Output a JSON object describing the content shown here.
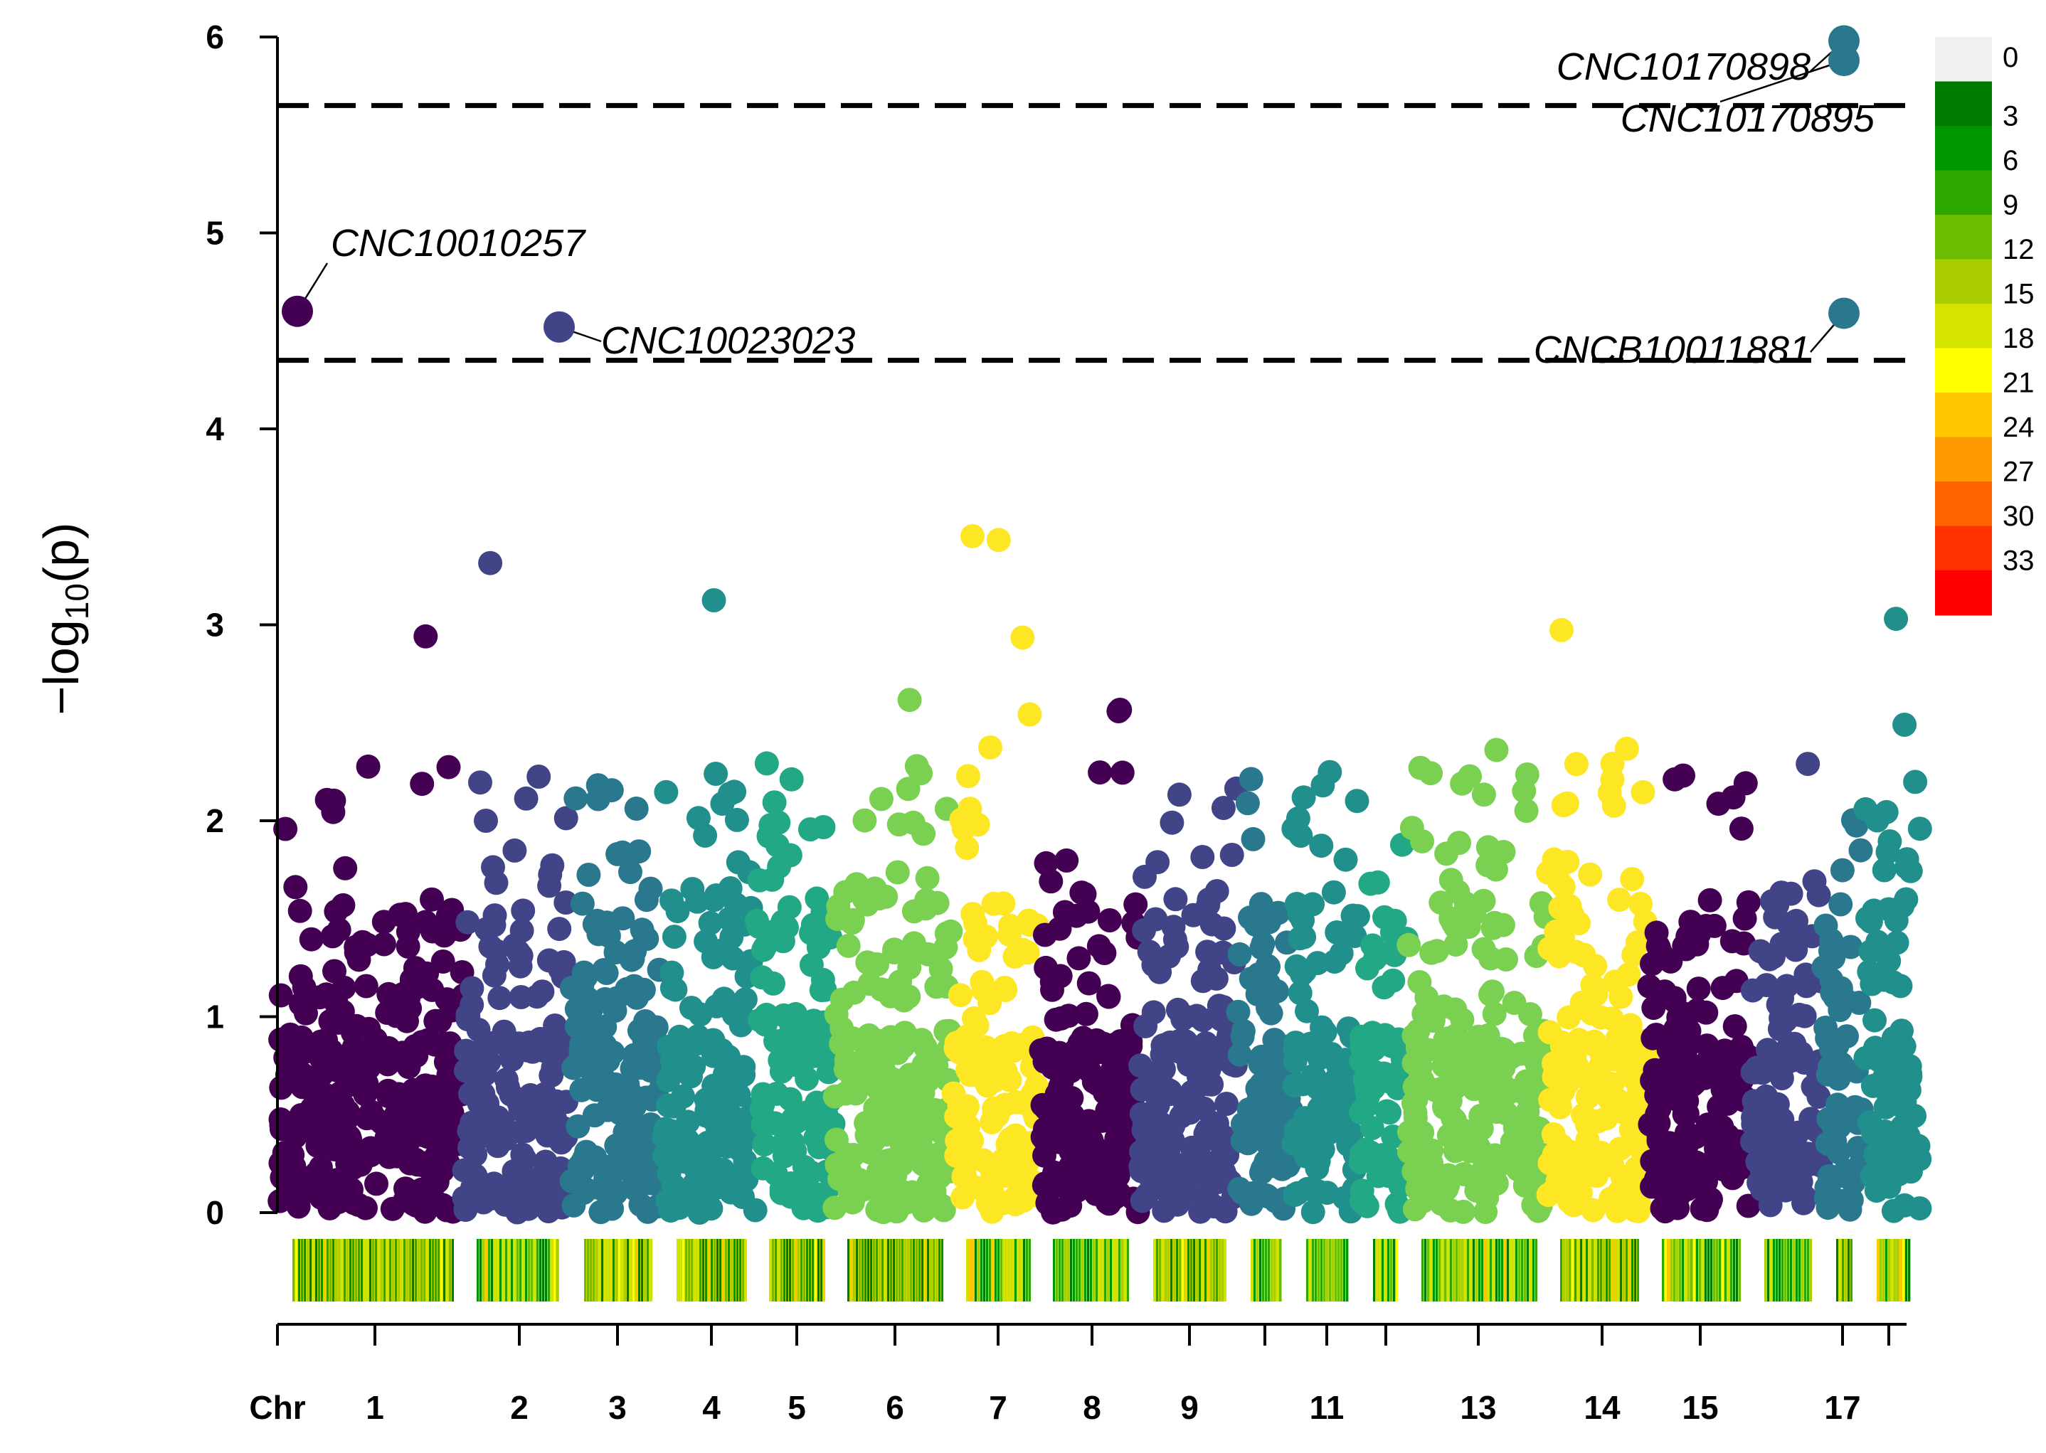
{
  "chart_data": {
    "type": "scatter",
    "subtype": "manhattan",
    "title": "",
    "xlabel": "Chr",
    "ylabel_main": "−log",
    "ylabel_sub": "10",
    "ylabel_arg": "(p)",
    "ylim": [
      0,
      6
    ],
    "yticks": [
      0,
      1,
      2,
      3,
      4,
      5,
      6
    ],
    "thresholds": [
      4.35,
      5.65
    ],
    "chromosomes": [
      "1",
      "2",
      "3",
      "4",
      "5",
      "6",
      "7",
      "8",
      "9",
      "10",
      "11",
      "12",
      "13",
      "14",
      "15",
      "16",
      "17",
      "18"
    ],
    "chr_tick_labels": [
      "Chr",
      "1",
      "2",
      "3",
      "4",
      "5",
      "6",
      "7",
      "8",
      "9",
      "11",
      "13",
      "14",
      "15",
      "17"
    ],
    "chr_colors": [
      "#440154",
      "#414487",
      "#2a788e",
      "#21908c",
      "#22a884",
      "#7ad151",
      "#fde725"
    ],
    "top_points": [
      {
        "chr": "1",
        "y": 4.6,
        "label": "CNC10010257",
        "color": "#440154"
      },
      {
        "chr": "2",
        "y": 4.52,
        "label": "CNC10023023",
        "color": "#414487"
      },
      {
        "chr": "17",
        "y": 5.98,
        "label": "CNC10170898",
        "color": "#2a788e"
      },
      {
        "chr": "17",
        "y": 5.88,
        "label": "CNC10170895",
        "color": "#2a788e"
      },
      {
        "chr": "17",
        "y": 4.59,
        "label": "CNCB10011881",
        "color": "#2a788e"
      }
    ],
    "density_legend": {
      "labels": [
        "0",
        "3",
        "6",
        "9",
        "12",
        "15",
        "18",
        "21",
        "24",
        "27",
        "30",
        "33"
      ],
      "colors": [
        "#f0f0f0",
        "#007a00",
        "#009600",
        "#2ea800",
        "#6cbd00",
        "#aacd00",
        "#d4e300",
        "#ffff00",
        "#ffc800",
        "#ff9b00",
        "#ff6400",
        "#ff3200",
        "#ff0000"
      ]
    }
  }
}
